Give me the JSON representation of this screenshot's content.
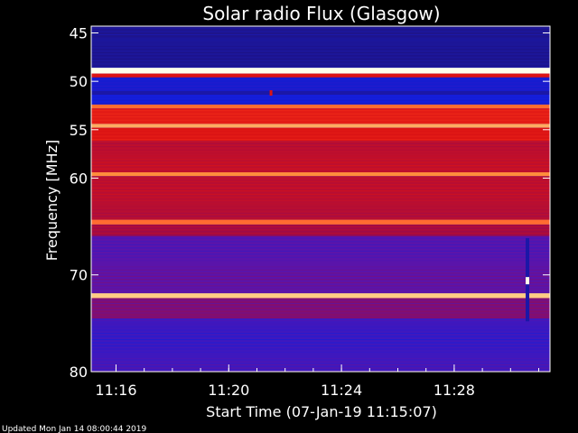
{
  "chart_data": {
    "type": "heatmap",
    "title": "Solar radio Flux (Glasgow)",
    "xlabel": "Start Time (07-Jan-19 11:15:07)",
    "ylabel": "Frequency [MHz]",
    "footer": "Updated Mon Jan 14 08:00:44 2019",
    "x_range_minutes": [
      11.25,
      11.5
    ],
    "x_tick_labels": [
      "11:16",
      "11:20",
      "11:24",
      "11:28"
    ],
    "x_tick_values_min": [
      16,
      20,
      24,
      28
    ],
    "x_range_min": [
      15.12,
      31.4
    ],
    "ylim": [
      44.3,
      80.0
    ],
    "y_ticks": [
      45,
      50,
      55,
      60,
      70,
      80
    ],
    "y_inverted": true,
    "colormap": "blue-red-yellow-white",
    "bands": [
      {
        "from_mhz": 44.3,
        "to_mhz": 45.5,
        "level": 0.18
      },
      {
        "from_mhz": 45.5,
        "to_mhz": 48.6,
        "level": 0.2
      },
      {
        "from_mhz": 48.6,
        "to_mhz": 49.2,
        "level": 1.0
      },
      {
        "from_mhz": 49.2,
        "to_mhz": 49.6,
        "level": 0.6
      },
      {
        "from_mhz": 49.6,
        "to_mhz": 51.0,
        "level": 0.28
      },
      {
        "from_mhz": 51.0,
        "to_mhz": 51.4,
        "level": 0.22
      },
      {
        "from_mhz": 51.4,
        "to_mhz": 52.4,
        "level": 0.3
      },
      {
        "from_mhz": 52.4,
        "to_mhz": 52.8,
        "level": 0.78
      },
      {
        "from_mhz": 52.8,
        "to_mhz": 54.4,
        "level": 0.62
      },
      {
        "from_mhz": 54.4,
        "to_mhz": 54.8,
        "level": 0.86
      },
      {
        "from_mhz": 54.8,
        "to_mhz": 56.2,
        "level": 0.6
      },
      {
        "from_mhz": 56.2,
        "to_mhz": 59.4,
        "level": 0.55
      },
      {
        "from_mhz": 59.4,
        "to_mhz": 59.8,
        "level": 0.82
      },
      {
        "from_mhz": 59.8,
        "to_mhz": 64.3,
        "level": 0.54
      },
      {
        "from_mhz": 64.3,
        "to_mhz": 64.8,
        "level": 0.78
      },
      {
        "from_mhz": 64.8,
        "to_mhz": 66.0,
        "level": 0.5
      },
      {
        "from_mhz": 66.0,
        "to_mhz": 71.9,
        "level": 0.4
      },
      {
        "from_mhz": 71.9,
        "to_mhz": 72.4,
        "level": 0.9
      },
      {
        "from_mhz": 72.4,
        "to_mhz": 74.5,
        "level": 0.46
      },
      {
        "from_mhz": 74.5,
        "to_mhz": 80.0,
        "level": 0.36
      }
    ],
    "artifacts": [
      {
        "minute": 21.5,
        "mhz": 51.2,
        "level": 0.6
      },
      {
        "minute": 30.6,
        "mhz": 70.6,
        "level": 1.0
      }
    ]
  }
}
